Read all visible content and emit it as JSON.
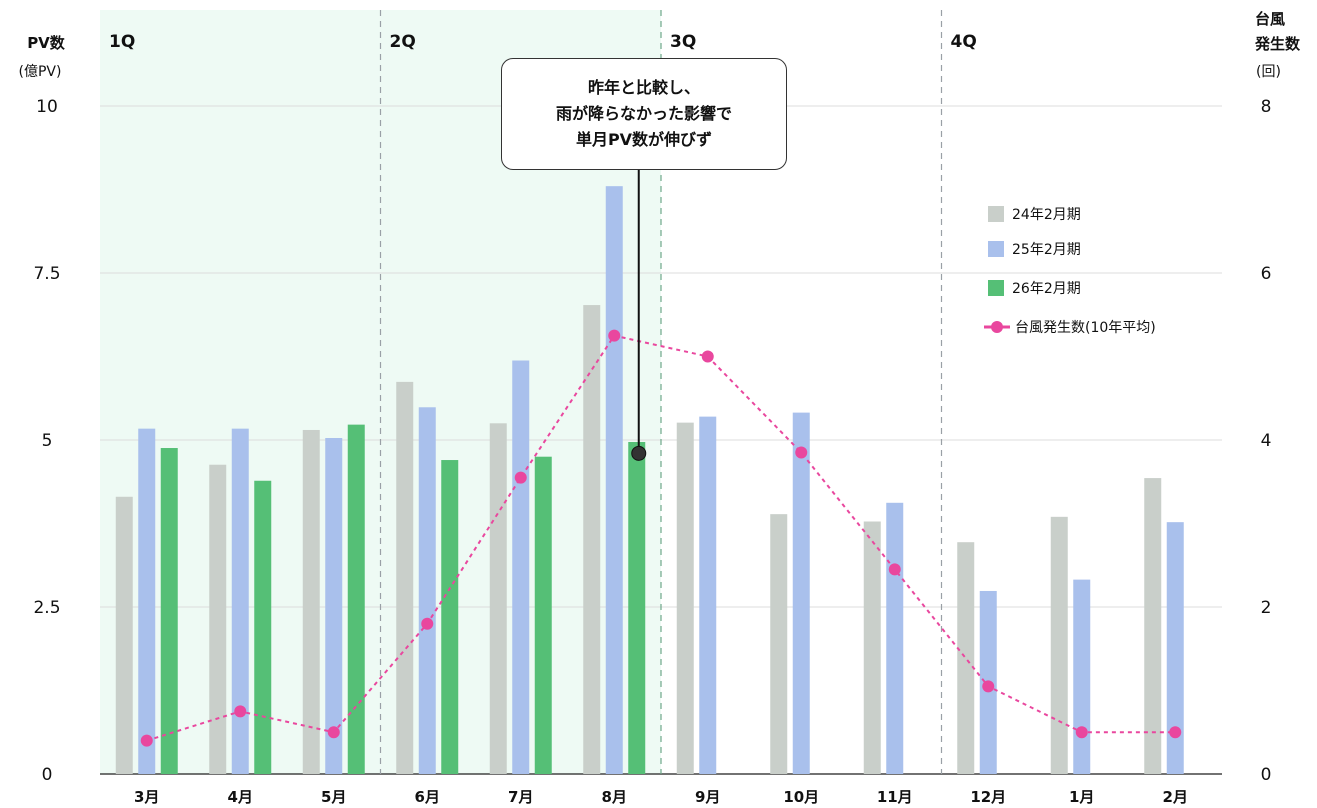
{
  "chart_data": {
    "type": "bar",
    "categories": [
      "3月",
      "4月",
      "5月",
      "6月",
      "7月",
      "8月",
      "9月",
      "10月",
      "11月",
      "12月",
      "1月",
      "2月"
    ],
    "series": [
      {
        "name": "24年2月期",
        "type": "bar",
        "axis": "left",
        "color": "#c9cfca",
        "values": [
          4.15,
          4.63,
          5.15,
          5.87,
          5.25,
          7.02,
          5.26,
          3.89,
          3.78,
          3.47,
          3.85,
          4.43
        ]
      },
      {
        "name": "25年2月期",
        "type": "bar",
        "axis": "left",
        "color": "#a9c0ec",
        "values": [
          5.17,
          5.17,
          5.03,
          5.49,
          6.19,
          8.8,
          5.35,
          5.41,
          4.06,
          2.74,
          2.91,
          3.77
        ]
      },
      {
        "name": "26年2月期",
        "type": "bar",
        "axis": "left",
        "color": "#55bf76",
        "values": [
          4.88,
          4.39,
          5.23,
          4.7,
          4.75,
          4.97,
          null,
          null,
          null,
          null,
          null,
          null
        ]
      },
      {
        "name": "台風発生数(10年平均)",
        "type": "line",
        "axis": "right",
        "color": "#e9479e",
        "values": [
          0.4,
          0.75,
          0.5,
          1.8,
          3.55,
          5.25,
          5.0,
          3.85,
          2.45,
          1.05,
          0.5,
          0.5
        ]
      }
    ],
    "y_left": {
      "title": "PV数",
      "unit": "(億PV)",
      "range": [
        0,
        10
      ],
      "ticks": [
        "0",
        "2.5",
        "5",
        "7.5",
        "10"
      ]
    },
    "y_right": {
      "title_lines": [
        "台風",
        "発生数"
      ],
      "unit": "(回)",
      "range": [
        0,
        8
      ],
      "ticks": [
        "0",
        "2",
        "4",
        "6",
        "8"
      ]
    },
    "quarters": [
      {
        "label": "1Q",
        "shaded": true
      },
      {
        "label": "2Q",
        "shaded": true
      },
      {
        "label": "3Q",
        "shaded": false
      },
      {
        "label": "4Q",
        "shaded": false
      }
    ],
    "annotation": {
      "lines": [
        "昨年と比較し、",
        "雨が降らなかった影響で",
        "単月PV数が伸びず"
      ],
      "points_to": {
        "category": "8月",
        "value": 4.8
      }
    },
    "legend": {
      "position": "right"
    },
    "grid": true
  }
}
